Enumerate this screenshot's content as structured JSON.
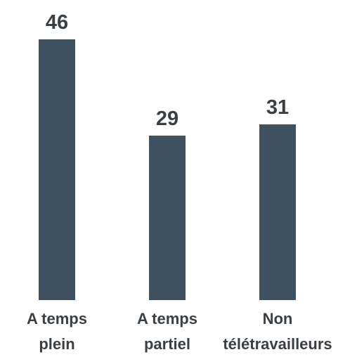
{
  "chart_data": {
    "type": "bar",
    "categories": [
      "A temps plein",
      "A temps partiel",
      "Non télétravailleurs"
    ],
    "values": [
      46,
      29,
      31
    ],
    "color": "#3d5160"
  }
}
